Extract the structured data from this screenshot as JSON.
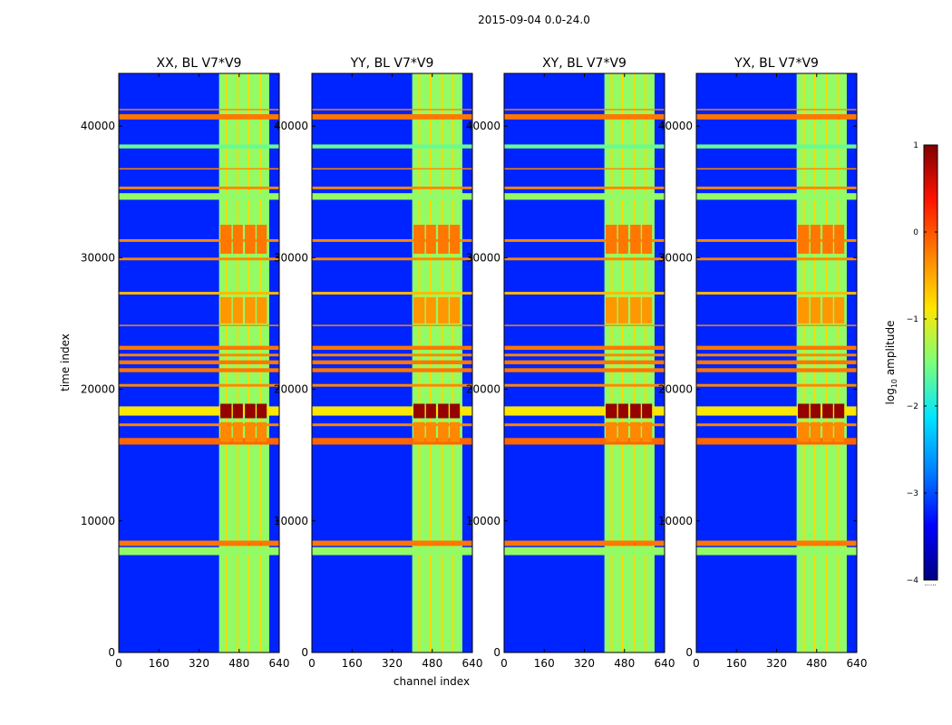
{
  "figure": {
    "suptitle": "2015-09-04 0.0-24.0"
  },
  "colors": {
    "c0": "#00007f",
    "c1": "#0000ff",
    "c2": "#0080ff",
    "c3": "#00e5ff",
    "c4": "#7dff7a",
    "c5": "#ffe600",
    "c6": "#ff8000",
    "c7": "#ff1300",
    "c8": "#800000"
  },
  "chart_data": {
    "type": "heatmap",
    "suptitle": "2015-09-04 0.0-24.0",
    "xlabel": "channel index",
    "ylabel": "time index",
    "xlim": [
      0,
      640
    ],
    "ylim": [
      0,
      44000
    ],
    "xticks": [
      "0",
      "160",
      "320",
      "480",
      "640"
    ],
    "xtick_values": [
      0,
      160,
      320,
      480,
      640
    ],
    "yticks": [
      "0",
      "10000",
      "20000",
      "30000",
      "40000"
    ],
    "ytick_values": [
      0,
      10000,
      20000,
      30000,
      40000
    ],
    "colorscale": "jet",
    "colorbar": {
      "label": "log10 amplitude",
      "label_main": "log",
      "label_sub": "10",
      "label_tail": " amplitude",
      "vmin": -4,
      "vmax": 1,
      "ticks": [
        "1",
        "0",
        "−1",
        "−2",
        "−3",
        "−4"
      ],
      "tick_values": [
        1,
        0,
        -1,
        -2,
        -3,
        -4
      ]
    },
    "panels": [
      {
        "title": "XX, BL V7*V9",
        "pol": "XX",
        "baseline": "V7*V9"
      },
      {
        "title": "YY, BL V7*V9",
        "pol": "YY",
        "baseline": "V7*V9"
      },
      {
        "title": "XY, BL V7*V9",
        "pol": "XY",
        "baseline": "V7*V9"
      },
      {
        "title": "YX, BL V7*V9",
        "pol": "YX",
        "baseline": "V7*V9"
      }
    ],
    "background_level": -3.2,
    "rfi_channel_bands": [
      {
        "from": 400,
        "to": 600,
        "level": -1.4
      },
      {
        "from": 425,
        "to": 432,
        "level": -0.8
      },
      {
        "from": 470,
        "to": 477,
        "level": -0.8
      },
      {
        "from": 515,
        "to": 522,
        "level": -0.8
      },
      {
        "from": 560,
        "to": 567,
        "level": -0.8
      }
    ],
    "bright_channel_blocks": [
      {
        "channels": [
          [
            405,
            450
          ],
          [
            455,
            495
          ],
          [
            503,
            545
          ],
          [
            550,
            590
          ]
        ],
        "time": [
          17800,
          18900
        ],
        "level": 0.9
      },
      {
        "channels": [
          [
            405,
            450
          ],
          [
            455,
            495
          ],
          [
            503,
            545
          ],
          [
            550,
            590
          ]
        ],
        "time": [
          30300,
          32500
        ],
        "level": -0.2
      },
      {
        "channels": [
          [
            405,
            450
          ],
          [
            455,
            495
          ],
          [
            503,
            545
          ],
          [
            550,
            590
          ]
        ],
        "time": [
          25000,
          27000
        ],
        "level": -0.4
      },
      {
        "channels": [
          [
            405,
            450
          ],
          [
            455,
            495
          ],
          [
            503,
            545
          ],
          [
            550,
            590
          ]
        ],
        "time": [
          16000,
          17500
        ],
        "level": -0.3
      }
    ],
    "full_width_time_bands": [
      {
        "from": 7400,
        "to": 8000,
        "level": -1.4
      },
      {
        "from": 8100,
        "to": 8500,
        "level": -0.2
      },
      {
        "from": 15800,
        "to": 16300,
        "level": -0.1
      },
      {
        "from": 17200,
        "to": 17400,
        "level": -0.3
      },
      {
        "from": 18000,
        "to": 18700,
        "level": -0.9
      },
      {
        "from": 20200,
        "to": 20400,
        "level": -0.3
      },
      {
        "from": 21300,
        "to": 21600,
        "level": -0.2
      },
      {
        "from": 21900,
        "to": 22200,
        "level": -0.2
      },
      {
        "from": 22500,
        "to": 22700,
        "level": -0.3
      },
      {
        "from": 23000,
        "to": 23300,
        "level": -0.2
      },
      {
        "from": 24800,
        "to": 24900,
        "level": -0.3
      },
      {
        "from": 27200,
        "to": 27400,
        "level": -0.6
      },
      {
        "from": 29800,
        "to": 30000,
        "level": -0.3
      },
      {
        "from": 31200,
        "to": 31400,
        "level": -0.3
      },
      {
        "from": 34400,
        "to": 34900,
        "level": -1.4
      },
      {
        "from": 35200,
        "to": 35400,
        "level": -0.3
      },
      {
        "from": 36700,
        "to": 36800,
        "level": -0.3
      },
      {
        "from": 38300,
        "to": 38600,
        "level": -1.6
      },
      {
        "from": 40500,
        "to": 40900,
        "level": -0.2
      },
      {
        "from": 41200,
        "to": 41300,
        "level": -0.3
      }
    ]
  }
}
